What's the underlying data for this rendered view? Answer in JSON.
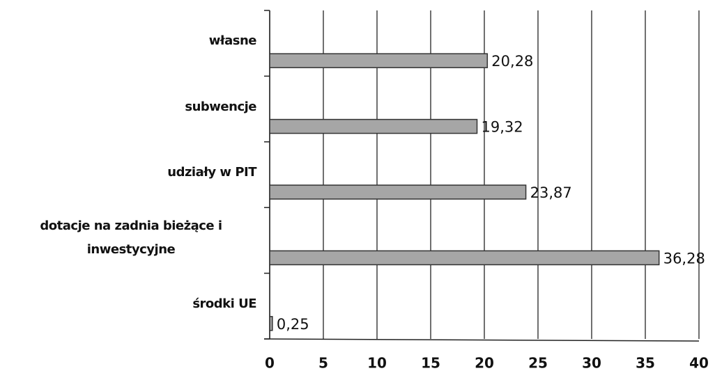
{
  "chart_data": {
    "type": "bar",
    "orientation": "horizontal",
    "categories": [
      "własne",
      "subwencje",
      "udziały w PIT",
      "dotacje na zadnia bieżące i inwestycyjne",
      "środki UE"
    ],
    "values": [
      20.28,
      19.32,
      23.87,
      36.28,
      0.25
    ],
    "value_labels": [
      "20,28",
      "19,32",
      "23,87",
      "36,28",
      "0,25"
    ],
    "color": "#a6a6a6",
    "xlim": [
      0,
      40
    ],
    "xticks": [
      0,
      5,
      10,
      15,
      20,
      25,
      30,
      35,
      40
    ],
    "grid": true
  }
}
